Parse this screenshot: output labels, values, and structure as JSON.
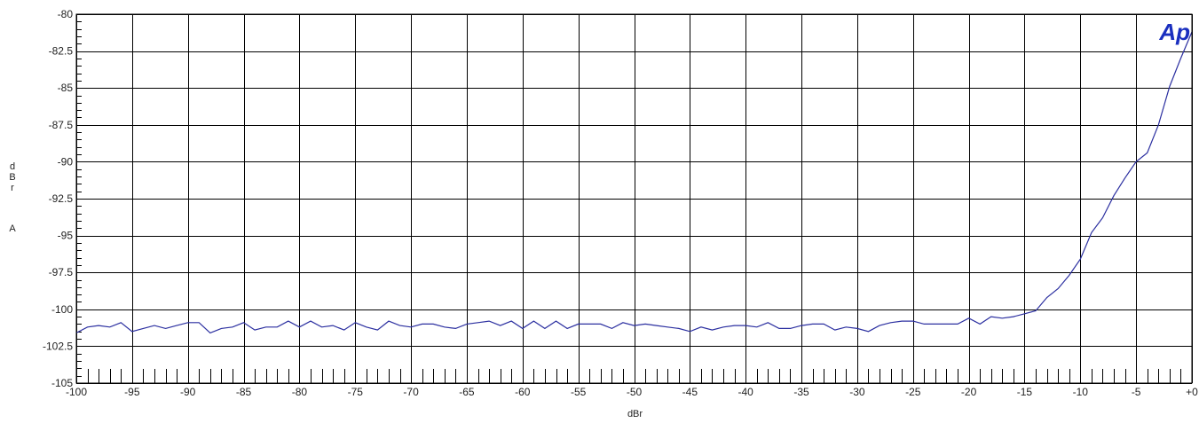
{
  "chart_data": {
    "type": "line",
    "logo": "Ap",
    "xlabel": "dBr",
    "ylabel_lines": [
      "d",
      "B",
      "r",
      "A"
    ],
    "xlim": [
      -100,
      0
    ],
    "ylim": [
      -105,
      -80
    ],
    "xticks": [
      -100,
      -95,
      -90,
      -85,
      -80,
      -75,
      -70,
      -65,
      -60,
      -55,
      -50,
      -45,
      -40,
      -35,
      -30,
      -25,
      -20,
      -15,
      -10,
      -5,
      0
    ],
    "xtick_labels": [
      "-100",
      "-95",
      "-90",
      "-85",
      "-80",
      "-75",
      "-70",
      "-65",
      "-60",
      "-55",
      "-50",
      "-45",
      "-40",
      "-35",
      "-30",
      "-25",
      "-20",
      "-15",
      "-10",
      "-5",
      "+0"
    ],
    "yticks": [
      -80,
      -82.5,
      -85,
      -87.5,
      -90,
      -92.5,
      -95,
      -97.5,
      -100,
      -102.5,
      -105
    ],
    "ytick_labels": [
      "-80",
      "-82.5",
      "-85",
      "-87.5",
      "-90",
      "-92.5",
      "-95",
      "-97.5",
      "-100",
      "-102.5",
      "-105"
    ],
    "grid": true,
    "line_color": "#2b2fa0",
    "series": [
      {
        "x": [
          -100,
          -99,
          -98,
          -97,
          -96,
          -95,
          -94,
          -93,
          -92,
          -91,
          -90,
          -89,
          -88,
          -87,
          -86,
          -85,
          -84,
          -83,
          -82,
          -81,
          -80,
          -79,
          -78,
          -77,
          -76,
          -75,
          -74,
          -73,
          -72,
          -71,
          -70,
          -69,
          -68,
          -67,
          -66,
          -65,
          -64,
          -63,
          -62,
          -61,
          -60,
          -59,
          -58,
          -57,
          -56,
          -55,
          -54,
          -53,
          -52,
          -51,
          -50,
          -49,
          -48,
          -47,
          -46,
          -45,
          -44,
          -43,
          -42,
          -41,
          -40,
          -39,
          -38,
          -37,
          -36,
          -35,
          -34,
          -33,
          -32,
          -31,
          -30,
          -29,
          -28,
          -27,
          -26,
          -25,
          -24,
          -23,
          -22,
          -21,
          -20,
          -19,
          -18,
          -17,
          -16,
          -15,
          -14,
          -13,
          -12,
          -11,
          -10,
          -9,
          -8,
          -7,
          -6,
          -5,
          -4,
          -3,
          -2,
          -1,
          0
        ],
        "y": [
          -101.6,
          -101.2,
          -101.1,
          -101.2,
          -100.9,
          -101.5,
          -101.3,
          -101.1,
          -101.3,
          -101.1,
          -100.9,
          -100.9,
          -101.6,
          -101.3,
          -101.2,
          -100.9,
          -101.4,
          -101.2,
          -101.2,
          -100.8,
          -101.2,
          -100.8,
          -101.2,
          -101.1,
          -101.4,
          -100.9,
          -101.2,
          -101.4,
          -100.8,
          -101.1,
          -101.2,
          -101.0,
          -101.0,
          -101.2,
          -101.3,
          -101.0,
          -100.9,
          -100.8,
          -101.1,
          -100.8,
          -101.3,
          -100.8,
          -101.3,
          -100.8,
          -101.3,
          -101.0,
          -101.0,
          -101.0,
          -101.3,
          -100.9,
          -101.1,
          -101.0,
          -101.1,
          -101.2,
          -101.3,
          -101.5,
          -101.2,
          -101.4,
          -101.2,
          -101.1,
          -101.1,
          -101.2,
          -100.9,
          -101.3,
          -101.3,
          -101.1,
          -101.0,
          -101.0,
          -101.4,
          -101.2,
          -101.3,
          -101.5,
          -101.1,
          -100.9,
          -100.8,
          -100.8,
          -101.0,
          -101.0,
          -101.0,
          -101.0,
          -100.6,
          -101.0,
          -100.5,
          -100.6,
          -100.5,
          -100.3,
          -100.1,
          -99.2,
          -98.6,
          -97.7,
          -96.6,
          -94.8,
          -93.8,
          -92.3,
          -91.1,
          -90.0,
          -89.4,
          -87.5,
          -84.9,
          -83.0,
          -81.2
        ]
      }
    ]
  }
}
